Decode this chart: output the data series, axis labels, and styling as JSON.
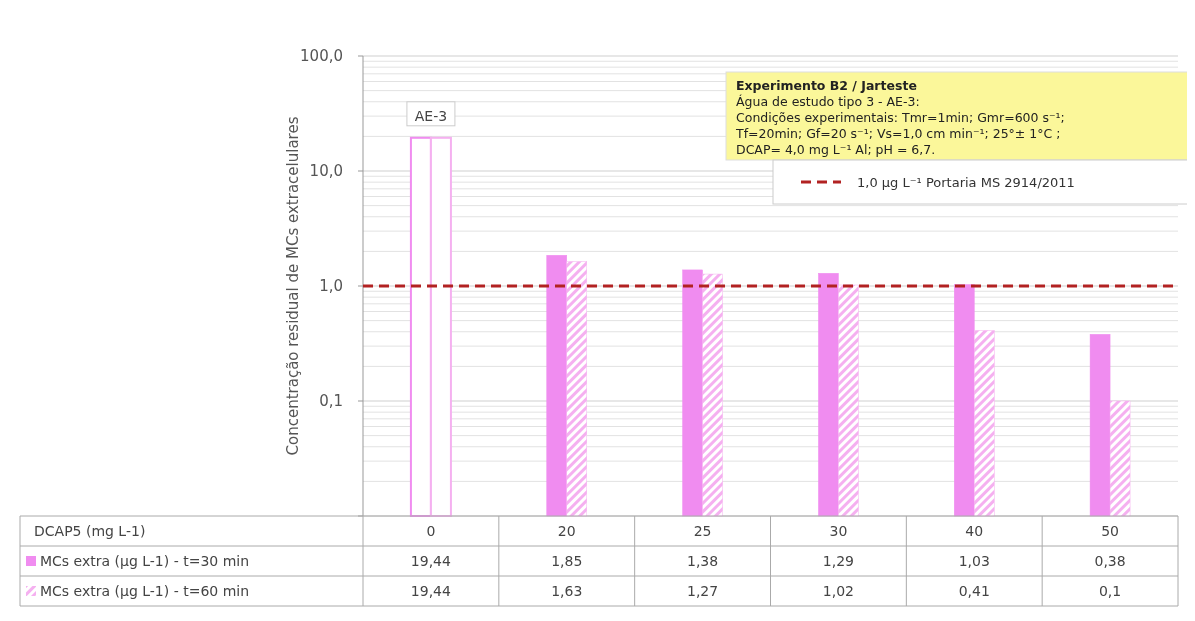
{
  "chart_data": {
    "type": "bar",
    "ylabel": "Concentração residual de MCs extracelulares",
    "categories": [
      "0",
      "20",
      "25",
      "30",
      "40",
      "50"
    ],
    "series": [
      {
        "name": "MCs extra (µg L-1) - t=30 min",
        "color": "#f08cf0",
        "colors": [
          "#ffffff",
          "#f08cf0",
          "#f08cf0",
          "#f08cf0",
          "#f08cf0",
          "#f08cf0"
        ],
        "values": [
          19.44,
          1.85,
          1.38,
          1.29,
          1.03,
          0.38
        ],
        "value_labels": [
          "19,44",
          "1,85",
          "1,38",
          "1,29",
          "1,03",
          "0,38"
        ]
      },
      {
        "name": "MCs extra (µg L-1) - t=60 min",
        "color": "#f5b0f0",
        "colors": [
          "#ffffff",
          "#f5b0f0",
          "#f5b0f0",
          "#f5b0f0",
          "#f5b0f0",
          "#f5b0f0"
        ],
        "values": [
          19.44,
          1.63,
          1.27,
          1.02,
          0.41,
          0.1
        ],
        "value_labels": [
          "19,44",
          "1,63",
          "1,27",
          "1,02",
          "0,41",
          "0,1"
        ]
      }
    ],
    "log": true,
    "ylim": [
      0.01,
      100
    ],
    "yticks": [
      {
        "value": 0.01,
        "label": null
      },
      {
        "value": 0.1,
        "label": "0,1"
      },
      {
        "value": 1,
        "label": "1,0"
      },
      {
        "value": 10,
        "label": "10,0"
      },
      {
        "value": 100,
        "label": "100,0"
      }
    ],
    "grid": "y",
    "legend": "bottom left",
    "ref_lines": [
      {
        "axis": "y",
        "value": 1,
        "label": "1,0 µg L⁻¹ Portaria MS 2914/2011",
        "color": "#b22222",
        "line_style": "dashed"
      }
    ],
    "annotations": [
      {
        "text": "AE-3",
        "x": "0",
        "y": 19.44
      },
      "Experimento B2 / Jarteste\nÁgua de estudo tipo 3 - AE-3:\nCondições experimentais: Tmr=1min; Gmr=600 s⁻¹;\nTf=20min; Gf=20 s⁻¹; Vs=1,0 cm min⁻¹; 25°± 1°C ;\nDCAP= 4,0 mg L⁻¹ Al; pH = 6,7.",
      "DCAP5 (mg L-1)"
    ]
  }
}
